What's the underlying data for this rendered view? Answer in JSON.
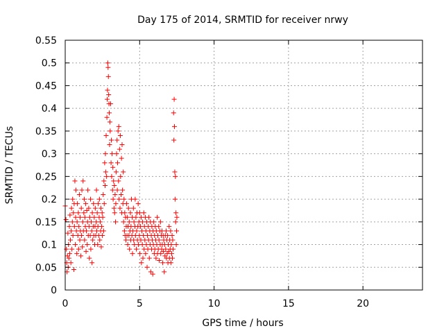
{
  "chart_data": {
    "type": "scatter",
    "title": "Day 175 of 2014, SRMTID for receiver nrwy",
    "xlabel": "GPS time / hours",
    "ylabel": "SRMTID / TECUs",
    "xlim": [
      0,
      24
    ],
    "ylim": [
      0,
      0.55
    ],
    "xticks": [
      0,
      5,
      10,
      15,
      20
    ],
    "yticks": [
      0,
      0.05,
      0.1,
      0.15,
      0.2,
      0.25,
      0.3,
      0.35,
      0.4,
      0.45,
      0.5,
      0.55
    ],
    "xtick_labels": [
      "0",
      "5",
      "10",
      "15",
      "20"
    ],
    "ytick_labels": [
      "0",
      "0.05",
      "0.1",
      "0.15",
      "0.2",
      "0.25",
      "0.3",
      "0.35",
      "0.4",
      "0.45",
      "0.5",
      "0.55"
    ],
    "grid": true,
    "marker": "+",
    "series_color": "#ff0000",
    "series": [
      {
        "name": "SRMTID",
        "points": [
          [
            0.0,
            0.185
          ],
          [
            0.05,
            0.155
          ],
          [
            0.08,
            0.09
          ],
          [
            0.1,
            0.06
          ],
          [
            0.12,
            0.04
          ],
          [
            0.15,
            0.075
          ],
          [
            0.18,
            0.125
          ],
          [
            0.2,
            0.05
          ],
          [
            0.22,
            0.1
          ],
          [
            0.25,
            0.07
          ],
          [
            0.28,
            0.14
          ],
          [
            0.3,
            0.08
          ],
          [
            0.32,
            0.165
          ],
          [
            0.35,
            0.11
          ],
          [
            0.38,
            0.06
          ],
          [
            0.4,
            0.13
          ],
          [
            0.42,
            0.18
          ],
          [
            0.45,
            0.09
          ],
          [
            0.48,
            0.15
          ],
          [
            0.5,
            0.2
          ],
          [
            0.52,
            0.12
          ],
          [
            0.55,
            0.17
          ],
          [
            0.58,
            0.045
          ],
          [
            0.6,
            0.19
          ],
          [
            0.62,
            0.14
          ],
          [
            0.65,
            0.24
          ],
          [
            0.68,
            0.1
          ],
          [
            0.7,
            0.16
          ],
          [
            0.72,
            0.22
          ],
          [
            0.75,
            0.13
          ],
          [
            0.78,
            0.08
          ],
          [
            0.8,
            0.15
          ],
          [
            0.82,
            0.19
          ],
          [
            0.85,
            0.12
          ],
          [
            0.88,
            0.17
          ],
          [
            0.9,
            0.09
          ],
          [
            0.92,
            0.14
          ],
          [
            0.95,
            0.21
          ],
          [
            0.98,
            0.11
          ],
          [
            1.0,
            0.16
          ],
          [
            1.02,
            0.13
          ],
          [
            1.05,
            0.075
          ],
          [
            1.08,
            0.18
          ],
          [
            1.1,
            0.12
          ],
          [
            1.12,
            0.22
          ],
          [
            1.15,
            0.095
          ],
          [
            1.18,
            0.15
          ],
          [
            1.2,
            0.24
          ],
          [
            1.22,
            0.13
          ],
          [
            1.25,
            0.17
          ],
          [
            1.28,
            0.2
          ],
          [
            1.3,
            0.11
          ],
          [
            1.32,
            0.16
          ],
          [
            1.35,
            0.14
          ],
          [
            1.38,
            0.19
          ],
          [
            1.4,
            0.085
          ],
          [
            1.42,
            0.13
          ],
          [
            1.45,
            0.175
          ],
          [
            1.48,
            0.1
          ],
          [
            1.5,
            0.15
          ],
          [
            1.52,
            0.22
          ],
          [
            1.55,
            0.12
          ],
          [
            1.58,
            0.18
          ],
          [
            1.6,
            0.14
          ],
          [
            1.62,
            0.07
          ],
          [
            1.65,
            0.16
          ],
          [
            1.68,
            0.12
          ],
          [
            1.7,
            0.2
          ],
          [
            1.72,
            0.09
          ],
          [
            1.75,
            0.15
          ],
          [
            1.78,
            0.13
          ],
          [
            1.8,
            0.06
          ],
          [
            1.82,
            0.17
          ],
          [
            1.85,
            0.11
          ],
          [
            1.88,
            0.14
          ],
          [
            1.9,
            0.19
          ],
          [
            1.92,
            0.12
          ],
          [
            1.95,
            0.16
          ],
          [
            1.98,
            0.1
          ],
          [
            2.0,
            0.14
          ],
          [
            2.02,
            0.18
          ],
          [
            2.05,
            0.12
          ],
          [
            2.08,
            0.15
          ],
          [
            2.1,
            0.22
          ],
          [
            2.12,
            0.13
          ],
          [
            2.15,
            0.17
          ],
          [
            2.18,
            0.1
          ],
          [
            2.2,
            0.14
          ],
          [
            2.22,
            0.19
          ],
          [
            2.25,
            0.12
          ],
          [
            2.28,
            0.16
          ],
          [
            2.3,
            0.2
          ],
          [
            2.32,
            0.11
          ],
          [
            2.35,
            0.15
          ],
          [
            2.38,
            0.13
          ],
          [
            2.4,
            0.18
          ],
          [
            2.42,
            0.095
          ],
          [
            2.45,
            0.14
          ],
          [
            2.48,
            0.17
          ],
          [
            2.5,
            0.12
          ],
          [
            2.52,
            0.16
          ],
          [
            2.55,
            0.21
          ],
          [
            2.58,
            0.13
          ],
          [
            2.6,
            0.24
          ],
          [
            2.62,
            0.19
          ],
          [
            2.65,
            0.28
          ],
          [
            2.68,
            0.23
          ],
          [
            2.7,
            0.3
          ],
          [
            2.72,
            0.26
          ],
          [
            2.75,
            0.34
          ],
          [
            2.78,
            0.25
          ],
          [
            2.8,
            0.38
          ],
          [
            2.82,
            0.42
          ],
          [
            2.84,
            0.44
          ],
          [
            2.86,
            0.5
          ],
          [
            2.88,
            0.49
          ],
          [
            2.9,
            0.47
          ],
          [
            2.92,
            0.43
          ],
          [
            2.94,
            0.41
          ],
          [
            2.96,
            0.39
          ],
          [
            2.98,
            0.32
          ],
          [
            3.0,
            0.37
          ],
          [
            3.02,
            0.35
          ],
          [
            3.05,
            0.41
          ],
          [
            3.08,
            0.28
          ],
          [
            3.1,
            0.33
          ],
          [
            3.12,
            0.25
          ],
          [
            3.15,
            0.3
          ],
          [
            3.18,
            0.22
          ],
          [
            3.2,
            0.27
          ],
          [
            3.22,
            0.2
          ],
          [
            3.25,
            0.24
          ],
          [
            3.28,
            0.18
          ],
          [
            3.3,
            0.23
          ],
          [
            3.32,
            0.17
          ],
          [
            3.35,
            0.21
          ],
          [
            3.38,
            0.15
          ],
          [
            3.4,
            0.19
          ],
          [
            3.42,
            0.26
          ],
          [
            3.45,
            0.3
          ],
          [
            3.48,
            0.33
          ],
          [
            3.5,
            0.22
          ],
          [
            3.52,
            0.28
          ],
          [
            3.55,
            0.35
          ],
          [
            3.58,
            0.24
          ],
          [
            3.6,
            0.36
          ],
          [
            3.62,
            0.2
          ],
          [
            3.65,
            0.31
          ],
          [
            3.68,
            0.18
          ],
          [
            3.7,
            0.34
          ],
          [
            3.72,
            0.25
          ],
          [
            3.75,
            0.21
          ],
          [
            3.78,
            0.29
          ],
          [
            3.8,
            0.17
          ],
          [
            3.82,
            0.32
          ],
          [
            3.85,
            0.22
          ],
          [
            3.88,
            0.19
          ],
          [
            3.9,
            0.26
          ],
          [
            3.92,
            0.15
          ],
          [
            3.95,
            0.2
          ],
          [
            3.98,
            0.13
          ],
          [
            4.0,
            0.17
          ],
          [
            4.02,
            0.12
          ],
          [
            4.05,
            0.16
          ],
          [
            4.08,
            0.11
          ],
          [
            4.1,
            0.14
          ],
          [
            4.12,
            0.19
          ],
          [
            4.15,
            0.12
          ],
          [
            4.18,
            0.16
          ],
          [
            4.2,
            0.1
          ],
          [
            4.22,
            0.14
          ],
          [
            4.25,
            0.18
          ],
          [
            4.28,
            0.12
          ],
          [
            4.3,
            0.15
          ],
          [
            4.32,
            0.09
          ],
          [
            4.35,
            0.13
          ],
          [
            4.38,
            0.17
          ],
          [
            4.4,
            0.11
          ],
          [
            4.42,
            0.14
          ],
          [
            4.45,
            0.2
          ],
          [
            4.48,
            0.12
          ],
          [
            4.5,
            0.16
          ],
          [
            4.52,
            0.08
          ],
          [
            4.55,
            0.13
          ],
          [
            4.58,
            0.18
          ],
          [
            4.6,
            0.11
          ],
          [
            4.62,
            0.15
          ],
          [
            4.65,
            0.1
          ],
          [
            4.68,
            0.14
          ],
          [
            4.7,
            0.2
          ],
          [
            4.72,
            0.12
          ],
          [
            4.75,
            0.16
          ],
          [
            4.78,
            0.09
          ],
          [
            4.8,
            0.13
          ],
          [
            4.82,
            0.17
          ],
          [
            4.85,
            0.11
          ],
          [
            4.88,
            0.14
          ],
          [
            4.9,
            0.19
          ],
          [
            4.92,
            0.1
          ],
          [
            4.95,
            0.15
          ],
          [
            4.98,
            0.12
          ],
          [
            5.0,
            0.17
          ],
          [
            5.02,
            0.08
          ],
          [
            5.05,
            0.14
          ],
          [
            5.08,
            0.11
          ],
          [
            5.1,
            0.16
          ],
          [
            5.12,
            0.06
          ],
          [
            5.15,
            0.13
          ],
          [
            5.18,
            0.1
          ],
          [
            5.2,
            0.15
          ],
          [
            5.22,
            0.07
          ],
          [
            5.25,
            0.12
          ],
          [
            5.28,
            0.17
          ],
          [
            5.3,
            0.09
          ],
          [
            5.32,
            0.14
          ],
          [
            5.35,
            0.11
          ],
          [
            5.38,
            0.16
          ],
          [
            5.4,
            0.08
          ],
          [
            5.42,
            0.13
          ],
          [
            5.45,
            0.1
          ],
          [
            5.48,
            0.15
          ],
          [
            5.5,
            0.05
          ],
          [
            5.52,
            0.12
          ],
          [
            5.55,
            0.09
          ],
          [
            5.58,
            0.14
          ],
          [
            5.6,
            0.11
          ],
          [
            5.62,
            0.16
          ],
          [
            5.65,
            0.07
          ],
          [
            5.68,
            0.13
          ],
          [
            5.7,
            0.1
          ],
          [
            5.72,
            0.15
          ],
          [
            5.75,
            0.04
          ],
          [
            5.78,
            0.12
          ],
          [
            5.8,
            0.09
          ],
          [
            5.82,
            0.14
          ],
          [
            5.85,
            0.11
          ],
          [
            5.88,
            0.035
          ],
          [
            5.9,
            0.13
          ],
          [
            5.92,
            0.1
          ],
          [
            5.95,
            0.15
          ],
          [
            5.98,
            0.08
          ],
          [
            6.0,
            0.12
          ],
          [
            6.02,
            0.09
          ],
          [
            6.05,
            0.14
          ],
          [
            6.08,
            0.11
          ],
          [
            6.1,
            0.07
          ],
          [
            6.12,
            0.13
          ],
          [
            6.15,
            0.1
          ],
          [
            6.18,
            0.16
          ],
          [
            6.2,
            0.08
          ],
          [
            6.22,
            0.12
          ],
          [
            6.25,
            0.09
          ],
          [
            6.28,
            0.14
          ],
          [
            6.3,
            0.11
          ],
          [
            6.32,
            0.065
          ],
          [
            6.35,
            0.13
          ],
          [
            6.38,
            0.1
          ],
          [
            6.4,
            0.15
          ],
          [
            6.42,
            0.08
          ],
          [
            6.45,
            0.12
          ],
          [
            6.48,
            0.09
          ],
          [
            6.5,
            0.13
          ],
          [
            6.52,
            0.1
          ],
          [
            6.55,
            0.06
          ],
          [
            6.58,
            0.12
          ],
          [
            6.6,
            0.085
          ],
          [
            6.62,
            0.11
          ],
          [
            6.65,
            0.04
          ],
          [
            6.68,
            0.1
          ],
          [
            6.7,
            0.075
          ],
          [
            6.72,
            0.12
          ],
          [
            6.75,
            0.09
          ],
          [
            6.78,
            0.13
          ],
          [
            6.8,
            0.07
          ],
          [
            6.82,
            0.11
          ],
          [
            6.85,
            0.08
          ],
          [
            6.88,
            0.12
          ],
          [
            6.9,
            0.06
          ],
          [
            6.92,
            0.1
          ],
          [
            6.95,
            0.085
          ],
          [
            6.98,
            0.14
          ],
          [
            7.0,
            0.07
          ],
          [
            7.02,
            0.11
          ],
          [
            7.05,
            0.09
          ],
          [
            7.08,
            0.13
          ],
          [
            7.1,
            0.06
          ],
          [
            7.12,
            0.1
          ],
          [
            7.15,
            0.08
          ],
          [
            7.18,
            0.12
          ],
          [
            7.2,
            0.07
          ],
          [
            7.22,
            0.11
          ],
          [
            7.25,
            0.09
          ],
          [
            7.28,
            0.39
          ],
          [
            7.3,
            0.33
          ],
          [
            7.32,
            0.42
          ],
          [
            7.34,
            0.36
          ],
          [
            7.36,
            0.26
          ],
          [
            7.38,
            0.2
          ],
          [
            7.4,
            0.25
          ],
          [
            7.42,
            0.15
          ],
          [
            7.44,
            0.17
          ],
          [
            7.46,
            0.1
          ],
          [
            7.48,
            0.13
          ],
          [
            7.5,
            0.16
          ]
        ]
      }
    ]
  }
}
